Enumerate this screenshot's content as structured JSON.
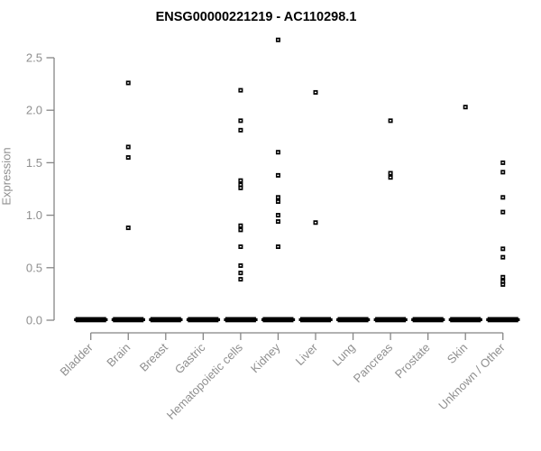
{
  "chart_data": {
    "type": "scatter",
    "title": "ENSG00000221219 - AC110298.1",
    "xlabel": "",
    "ylabel": "Expression",
    "ylim": [
      0,
      2.7
    ],
    "yticks": [
      "0.0",
      "0.5",
      "1.0",
      "1.5",
      "2.0",
      "2.5"
    ],
    "grid": false,
    "legend": false,
    "marker_style": "small open black square",
    "categories": [
      "Bladder",
      "Brain",
      "Breast",
      "Gastric",
      "Hematopoietic cells",
      "Kidney",
      "Liver",
      "Lung",
      "Pancreas",
      "Prostate",
      "Skin",
      "Unknown / Other"
    ],
    "series": [
      {
        "category": "Bladder",
        "values": [],
        "zero_cluster": true
      },
      {
        "category": "Brain",
        "values": [
          2.26,
          1.65,
          1.55,
          0.88
        ],
        "zero_cluster": true
      },
      {
        "category": "Breast",
        "values": [],
        "zero_cluster": true
      },
      {
        "category": "Gastric",
        "values": [],
        "zero_cluster": true
      },
      {
        "category": "Hematopoietic cells",
        "values": [
          2.19,
          1.9,
          1.81,
          1.33,
          1.29,
          1.26,
          0.9,
          0.86,
          0.7,
          0.52,
          0.45,
          0.39
        ],
        "zero_cluster": true
      },
      {
        "category": "Kidney",
        "values": [
          2.67,
          1.6,
          1.38,
          1.17,
          1.13,
          1.0,
          0.94,
          0.7
        ],
        "zero_cluster": true
      },
      {
        "category": "Liver",
        "values": [
          2.17,
          0.93
        ],
        "zero_cluster": true
      },
      {
        "category": "Lung",
        "values": [],
        "zero_cluster": true
      },
      {
        "category": "Pancreas",
        "values": [
          1.9,
          1.4,
          1.36
        ],
        "zero_cluster": true
      },
      {
        "category": "Prostate",
        "values": [],
        "zero_cluster": true
      },
      {
        "category": "Skin",
        "values": [
          2.03
        ],
        "zero_cluster": true
      },
      {
        "category": "Unknown / Other",
        "values": [
          1.5,
          1.41,
          1.17,
          1.03,
          0.68,
          0.6,
          0.41,
          0.37,
          0.34
        ],
        "zero_cluster": true
      }
    ],
    "zero_cluster_note": "every category shows a dense horizontal dash of many overlapping data points at expression 0"
  },
  "colors": {
    "marker": "#000000",
    "axis": "#858585",
    "tick_label": "#8f8f8f",
    "title": "#000000",
    "background": "#ffffff"
  }
}
